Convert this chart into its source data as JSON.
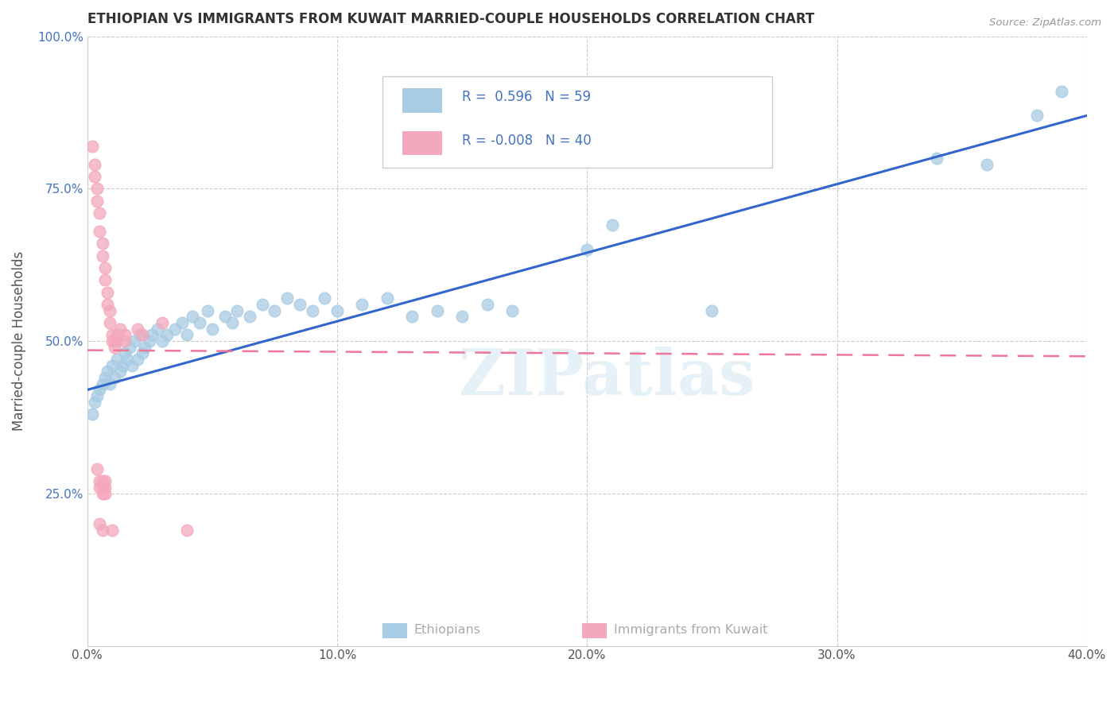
{
  "title": "ETHIOPIAN VS IMMIGRANTS FROM KUWAIT MARRIED-COUPLE HOUSEHOLDS CORRELATION CHART",
  "source": "Source: ZipAtlas.com",
  "ylabel": "Married-couple Households",
  "xlabel_ethiopians": "Ethiopians",
  "xlabel_kuwait": "Immigrants from Kuwait",
  "watermark": "ZIPatlas",
  "xmin": 0.0,
  "xmax": 0.4,
  "ymin": 0.0,
  "ymax": 1.0,
  "yticks": [
    0.25,
    0.5,
    0.75,
    1.0
  ],
  "ytick_labels": [
    "25.0%",
    "50.0%",
    "75.0%",
    "100.0%"
  ],
  "xticks": [
    0.0,
    0.1,
    0.2,
    0.3,
    0.4
  ],
  "xtick_labels": [
    "0.0%",
    "10.0%",
    "20.0%",
    "30.0%",
    "40.0%"
  ],
  "blue_R": 0.596,
  "blue_N": 59,
  "pink_R": -0.008,
  "pink_N": 40,
  "blue_color": "#a8cce4",
  "pink_color": "#f4a8bc",
  "line_blue": "#3366cc",
  "line_pink": "#ee7799",
  "blue_scatter": [
    [
      0.002,
      0.38
    ],
    [
      0.003,
      0.4
    ],
    [
      0.004,
      0.41
    ],
    [
      0.005,
      0.42
    ],
    [
      0.006,
      0.43
    ],
    [
      0.007,
      0.44
    ],
    [
      0.008,
      0.45
    ],
    [
      0.009,
      0.43
    ],
    [
      0.01,
      0.46
    ],
    [
      0.011,
      0.44
    ],
    [
      0.012,
      0.47
    ],
    [
      0.013,
      0.45
    ],
    [
      0.014,
      0.46
    ],
    [
      0.015,
      0.48
    ],
    [
      0.016,
      0.47
    ],
    [
      0.017,
      0.49
    ],
    [
      0.018,
      0.46
    ],
    [
      0.019,
      0.5
    ],
    [
      0.02,
      0.47
    ],
    [
      0.021,
      0.51
    ],
    [
      0.022,
      0.48
    ],
    [
      0.023,
      0.49
    ],
    [
      0.025,
      0.5
    ],
    [
      0.026,
      0.51
    ],
    [
      0.028,
      0.52
    ],
    [
      0.03,
      0.5
    ],
    [
      0.032,
      0.51
    ],
    [
      0.035,
      0.52
    ],
    [
      0.038,
      0.53
    ],
    [
      0.04,
      0.51
    ],
    [
      0.042,
      0.54
    ],
    [
      0.045,
      0.53
    ],
    [
      0.048,
      0.55
    ],
    [
      0.05,
      0.52
    ],
    [
      0.055,
      0.54
    ],
    [
      0.058,
      0.53
    ],
    [
      0.06,
      0.55
    ],
    [
      0.065,
      0.54
    ],
    [
      0.07,
      0.56
    ],
    [
      0.075,
      0.55
    ],
    [
      0.08,
      0.57
    ],
    [
      0.085,
      0.56
    ],
    [
      0.09,
      0.55
    ],
    [
      0.095,
      0.57
    ],
    [
      0.1,
      0.55
    ],
    [
      0.11,
      0.56
    ],
    [
      0.12,
      0.57
    ],
    [
      0.13,
      0.54
    ],
    [
      0.14,
      0.55
    ],
    [
      0.15,
      0.54
    ],
    [
      0.16,
      0.56
    ],
    [
      0.17,
      0.55
    ],
    [
      0.2,
      0.65
    ],
    [
      0.21,
      0.69
    ],
    [
      0.25,
      0.55
    ],
    [
      0.34,
      0.8
    ],
    [
      0.36,
      0.79
    ],
    [
      0.38,
      0.87
    ],
    [
      0.39,
      0.91
    ]
  ],
  "pink_scatter": [
    [
      0.002,
      0.82
    ],
    [
      0.003,
      0.79
    ],
    [
      0.003,
      0.77
    ],
    [
      0.004,
      0.75
    ],
    [
      0.004,
      0.73
    ],
    [
      0.005,
      0.71
    ],
    [
      0.005,
      0.68
    ],
    [
      0.006,
      0.66
    ],
    [
      0.006,
      0.64
    ],
    [
      0.007,
      0.62
    ],
    [
      0.007,
      0.6
    ],
    [
      0.008,
      0.58
    ],
    [
      0.008,
      0.56
    ],
    [
      0.009,
      0.55
    ],
    [
      0.009,
      0.53
    ],
    [
      0.01,
      0.51
    ],
    [
      0.01,
      0.5
    ],
    [
      0.011,
      0.5
    ],
    [
      0.011,
      0.49
    ],
    [
      0.012,
      0.51
    ],
    [
      0.012,
      0.5
    ],
    [
      0.013,
      0.52
    ],
    [
      0.015,
      0.51
    ],
    [
      0.015,
      0.5
    ],
    [
      0.02,
      0.52
    ],
    [
      0.022,
      0.51
    ],
    [
      0.03,
      0.53
    ],
    [
      0.004,
      0.29
    ],
    [
      0.005,
      0.27
    ],
    [
      0.006,
      0.27
    ],
    [
      0.006,
      0.26
    ],
    [
      0.007,
      0.27
    ],
    [
      0.007,
      0.26
    ],
    [
      0.005,
      0.26
    ],
    [
      0.006,
      0.25
    ],
    [
      0.007,
      0.25
    ],
    [
      0.005,
      0.2
    ],
    [
      0.006,
      0.19
    ],
    [
      0.01,
      0.19
    ],
    [
      0.04,
      0.19
    ]
  ],
  "blue_line_x": [
    0.0,
    0.4
  ],
  "blue_line_y": [
    0.42,
    0.87
  ],
  "pink_line_x": [
    0.0,
    0.4
  ],
  "pink_line_y": [
    0.485,
    0.475
  ]
}
